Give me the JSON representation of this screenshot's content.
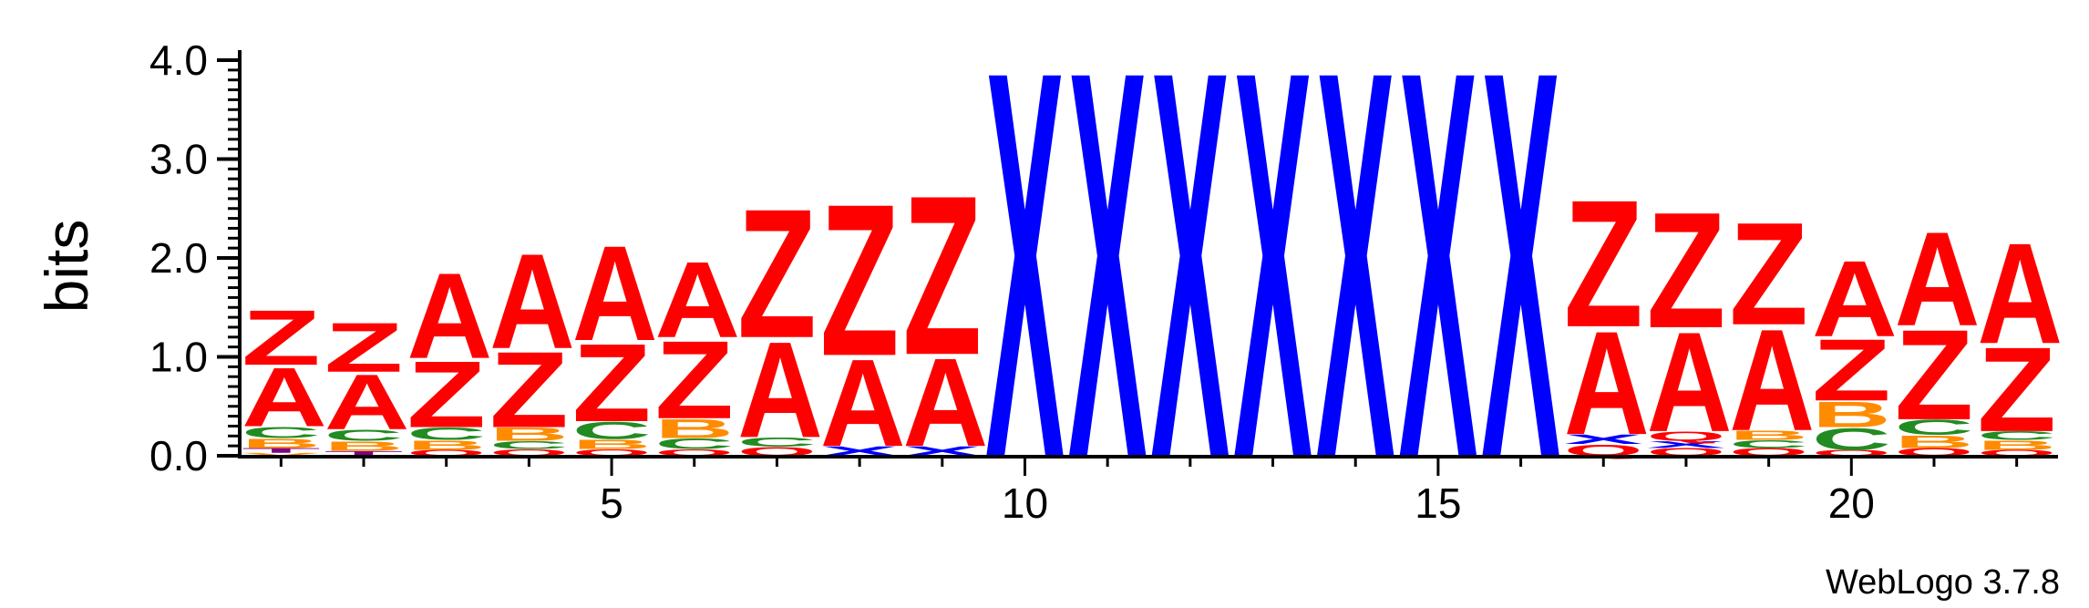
{
  "chart_data": {
    "type": "sequence-logo",
    "ylabel": "bits",
    "ylim": [
      0,
      4.0
    ],
    "yticks": [
      "0.0",
      "1.0",
      "2.0",
      "3.0",
      "4.0"
    ],
    "xticks": [
      5,
      10,
      15,
      20
    ],
    "footer": "WebLogo 3.7.8",
    "colors": {
      "A": "#ff0000",
      "Z": "#ff0000",
      "Q": "#ff0000",
      "X": "#0000ff",
      "C": "#228b22",
      "B": "#ff8c00",
      "T": "#800080",
      "V": "#ff8c00"
    },
    "positions": [
      {
        "pos": 1,
        "letters": [
          [
            "V",
            0.03
          ],
          [
            "T",
            0.05
          ],
          [
            "B",
            0.1
          ],
          [
            "C",
            0.12
          ],
          [
            "A",
            0.62
          ],
          [
            "Z",
            0.58
          ]
        ]
      },
      {
        "pos": 2,
        "letters": [
          [
            "T",
            0.05
          ],
          [
            "B",
            0.1
          ],
          [
            "C",
            0.12
          ],
          [
            "A",
            0.58
          ],
          [
            "Z",
            0.52
          ]
        ]
      },
      {
        "pos": 3,
        "letters": [
          [
            "Q",
            0.06
          ],
          [
            "B",
            0.1
          ],
          [
            "C",
            0.13
          ],
          [
            "Z",
            0.7
          ],
          [
            "A",
            0.9
          ]
        ]
      },
      {
        "pos": 4,
        "letters": [
          [
            "Q",
            0.07
          ],
          [
            "C",
            0.08
          ],
          [
            "B",
            0.14
          ],
          [
            "Z",
            0.8
          ],
          [
            "A",
            1.0
          ]
        ]
      },
      {
        "pos": 5,
        "letters": [
          [
            "Q",
            0.07
          ],
          [
            "B",
            0.1
          ],
          [
            "C",
            0.18
          ],
          [
            "Z",
            0.82
          ],
          [
            "A",
            1.0
          ]
        ]
      },
      {
        "pos": 6,
        "letters": [
          [
            "Q",
            0.07
          ],
          [
            "C",
            0.11
          ],
          [
            "B",
            0.2
          ],
          [
            "Z",
            0.82
          ],
          [
            "A",
            0.8
          ]
        ]
      },
      {
        "pos": 7,
        "letters": [
          [
            "Q",
            0.09
          ],
          [
            "C",
            0.1
          ],
          [
            "A",
            1.01
          ],
          [
            "Z",
            1.36
          ]
        ]
      },
      {
        "pos": 8,
        "letters": [
          [
            "X",
            0.1
          ],
          [
            "A",
            0.92
          ],
          [
            "Z",
            1.6
          ]
        ]
      },
      {
        "pos": 9,
        "letters": [
          [
            "X",
            0.1
          ],
          [
            "A",
            0.93
          ],
          [
            "Z",
            1.68
          ]
        ]
      },
      {
        "pos": 10,
        "letters": [
          [
            "X",
            4.08
          ]
        ]
      },
      {
        "pos": 11,
        "letters": [
          [
            "X",
            4.08
          ]
        ]
      },
      {
        "pos": 12,
        "letters": [
          [
            "X",
            4.08
          ]
        ]
      },
      {
        "pos": 13,
        "letters": [
          [
            "X",
            4.08
          ]
        ]
      },
      {
        "pos": 14,
        "letters": [
          [
            "X",
            4.08
          ]
        ]
      },
      {
        "pos": 15,
        "letters": [
          [
            "X",
            4.08
          ]
        ]
      },
      {
        "pos": 16,
        "letters": [
          [
            "X",
            4.08
          ]
        ]
      },
      {
        "pos": 17,
        "letters": [
          [
            "Q",
            0.12
          ],
          [
            "X",
            0.1
          ],
          [
            "A",
            1.09
          ],
          [
            "Z",
            1.34
          ]
        ]
      },
      {
        "pos": 18,
        "letters": [
          [
            "Q",
            0.08
          ],
          [
            "X",
            0.07
          ],
          [
            "Q",
            0.1
          ],
          [
            "A",
            1.05
          ],
          [
            "Z",
            1.22
          ]
        ]
      },
      {
        "pos": 19,
        "letters": [
          [
            "Q",
            0.08
          ],
          [
            "C",
            0.08
          ],
          [
            "B",
            0.1
          ],
          [
            "A",
            1.07
          ],
          [
            "Z",
            1.08
          ]
        ]
      },
      {
        "pos": 20,
        "letters": [
          [
            "Q",
            0.06
          ],
          [
            "C",
            0.23
          ],
          [
            "B",
            0.27
          ],
          [
            "Z",
            0.65
          ],
          [
            "A",
            0.8
          ]
        ]
      },
      {
        "pos": 21,
        "letters": [
          [
            "Q",
            0.08
          ],
          [
            "B",
            0.13
          ],
          [
            "C",
            0.16
          ],
          [
            "Z",
            0.95
          ],
          [
            "A",
            0.99
          ]
        ]
      },
      {
        "pos": 22,
        "letters": [
          [
            "Q",
            0.06
          ],
          [
            "B",
            0.1
          ],
          [
            "C",
            0.09
          ],
          [
            "Z",
            0.89
          ],
          [
            "A",
            1.06
          ]
        ]
      }
    ]
  }
}
